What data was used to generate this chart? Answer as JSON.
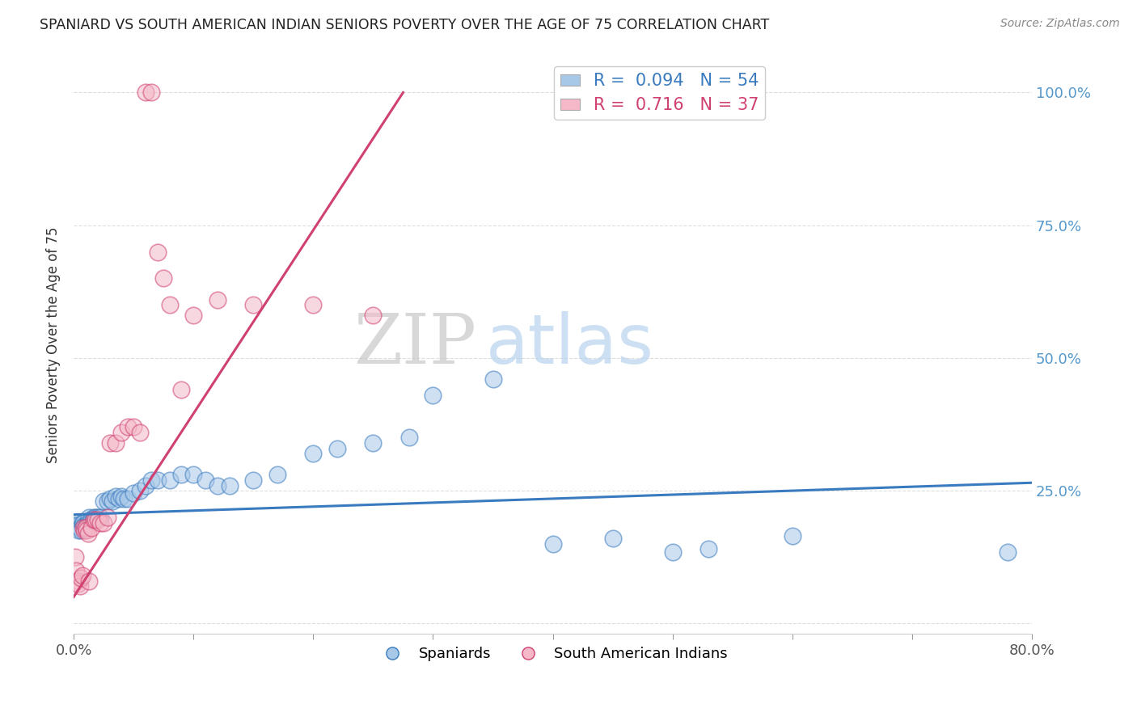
{
  "title": "SPANIARD VS SOUTH AMERICAN INDIAN SENIORS POVERTY OVER THE AGE OF 75 CORRELATION CHART",
  "source": "Source: ZipAtlas.com",
  "ylabel": "Seniors Poverty Over the Age of 75",
  "xlim": [
    0.0,
    0.8
  ],
  "ylim": [
    -0.02,
    1.07
  ],
  "yticks": [
    0.0,
    0.25,
    0.5,
    0.75,
    1.0
  ],
  "ytick_labels_right": [
    "",
    "25.0%",
    "50.0%",
    "75.0%",
    "100.0%"
  ],
  "legend_blue_R": "0.094",
  "legend_blue_N": "54",
  "legend_pink_R": "0.716",
  "legend_pink_N": "37",
  "blue_color": "#a8c8e8",
  "pink_color": "#f4b8c8",
  "blue_fill_color": "#a8c8e8",
  "pink_fill_color": "#f4b8c8",
  "blue_line_color": "#3a7bbf",
  "pink_line_color": "#d04070",
  "watermark_zip": "ZIP",
  "watermark_atlas": "atlas",
  "blue_scatter_x": [
    0.001,
    0.002,
    0.003,
    0.004,
    0.005,
    0.006,
    0.007,
    0.008,
    0.009,
    0.01,
    0.011,
    0.012,
    0.013,
    0.014,
    0.015,
    0.016,
    0.017,
    0.018,
    0.02,
    0.022,
    0.025,
    0.028,
    0.03,
    0.032,
    0.035,
    0.038,
    0.04,
    0.042,
    0.045,
    0.05,
    0.055,
    0.06,
    0.065,
    0.07,
    0.08,
    0.09,
    0.1,
    0.11,
    0.12,
    0.13,
    0.15,
    0.17,
    0.2,
    0.22,
    0.25,
    0.28,
    0.3,
    0.35,
    0.4,
    0.45,
    0.5,
    0.53,
    0.6,
    0.78
  ],
  "blue_scatter_y": [
    0.185,
    0.19,
    0.185,
    0.175,
    0.18,
    0.175,
    0.19,
    0.19,
    0.185,
    0.185,
    0.185,
    0.19,
    0.2,
    0.195,
    0.195,
    0.195,
    0.2,
    0.2,
    0.2,
    0.2,
    0.23,
    0.23,
    0.235,
    0.23,
    0.24,
    0.235,
    0.24,
    0.235,
    0.235,
    0.245,
    0.25,
    0.26,
    0.27,
    0.27,
    0.27,
    0.28,
    0.28,
    0.27,
    0.26,
    0.26,
    0.27,
    0.28,
    0.32,
    0.33,
    0.34,
    0.35,
    0.43,
    0.46,
    0.15,
    0.16,
    0.135,
    0.14,
    0.165,
    0.135
  ],
  "pink_scatter_x": [
    0.001,
    0.002,
    0.003,
    0.004,
    0.005,
    0.006,
    0.007,
    0.008,
    0.009,
    0.01,
    0.011,
    0.012,
    0.013,
    0.015,
    0.017,
    0.018,
    0.02,
    0.022,
    0.025,
    0.028,
    0.03,
    0.035,
    0.04,
    0.045,
    0.05,
    0.055,
    0.06,
    0.065,
    0.07,
    0.075,
    0.08,
    0.09,
    0.1,
    0.12,
    0.15,
    0.2,
    0.25
  ],
  "pink_scatter_y": [
    0.125,
    0.1,
    0.08,
    0.075,
    0.07,
    0.085,
    0.09,
    0.18,
    0.175,
    0.18,
    0.175,
    0.17,
    0.08,
    0.18,
    0.195,
    0.195,
    0.195,
    0.19,
    0.19,
    0.2,
    0.34,
    0.34,
    0.36,
    0.37,
    0.37,
    0.36,
    1.0,
    1.0,
    0.7,
    0.65,
    0.6,
    0.44,
    0.58,
    0.61,
    0.6,
    0.6,
    0.58
  ],
  "blue_trend_x": [
    0.0,
    0.8
  ],
  "blue_trend_y": [
    0.205,
    0.265
  ],
  "pink_trend_x": [
    0.0,
    0.275
  ],
  "pink_trend_y": [
    0.05,
    1.0
  ]
}
